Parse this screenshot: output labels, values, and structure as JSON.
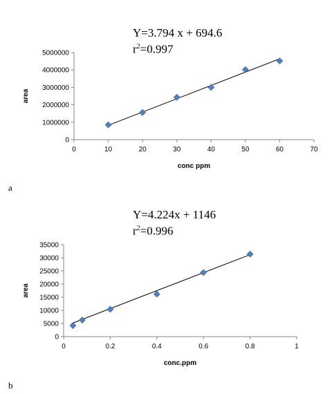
{
  "chart_data": [
    {
      "type": "scatter",
      "panel_label": "a",
      "equation": "Y=3.794 x + 694.6",
      "r2_prefix": "r",
      "r2_sup": "2",
      "r2_value": "=0.997",
      "xlabel": "conc ppm",
      "ylabel": "area",
      "xlim": [
        0,
        70
      ],
      "ylim": [
        0,
        5000000
      ],
      "xticks": [
        "0",
        "10",
        "20",
        "30",
        "40",
        "50",
        "60",
        "70"
      ],
      "yticks": [
        "0",
        "1000000",
        "2000000",
        "3000000",
        "4000000",
        "5000000"
      ],
      "x": [
        10,
        20,
        30,
        40,
        50,
        60
      ],
      "y": [
        850000,
        1560000,
        2430000,
        3000000,
        4020000,
        4520000
      ],
      "trendline": {
        "x": [
          10,
          60
        ],
        "y": [
          820000,
          4640000
        ]
      },
      "grid": false,
      "marker_color": "#4f81bd"
    },
    {
      "type": "scatter",
      "panel_label": "b",
      "equation": "Y=4.224x + 1146",
      "r2_prefix": "r",
      "r2_sup": "2",
      "r2_value": "=0.996",
      "xlabel": "conc.ppm",
      "ylabel": "area",
      "xlim": [
        0,
        1
      ],
      "ylim": [
        0,
        35000
      ],
      "xticks": [
        "0",
        "0.2",
        "0.4",
        "0.6",
        "0.8",
        "1"
      ],
      "yticks": [
        "0",
        "5000",
        "10000",
        "15000",
        "20000",
        "25000",
        "30000",
        "35000"
      ],
      "x": [
        0.04,
        0.08,
        0.2,
        0.4,
        0.6,
        0.8
      ],
      "y": [
        4200,
        6300,
        10400,
        16200,
        24400,
        31400
      ],
      "trendline": {
        "x": [
          0.04,
          0.8
        ],
        "y": [
          5200,
          31200
        ]
      },
      "grid": false,
      "marker_color": "#4f81bd"
    }
  ]
}
